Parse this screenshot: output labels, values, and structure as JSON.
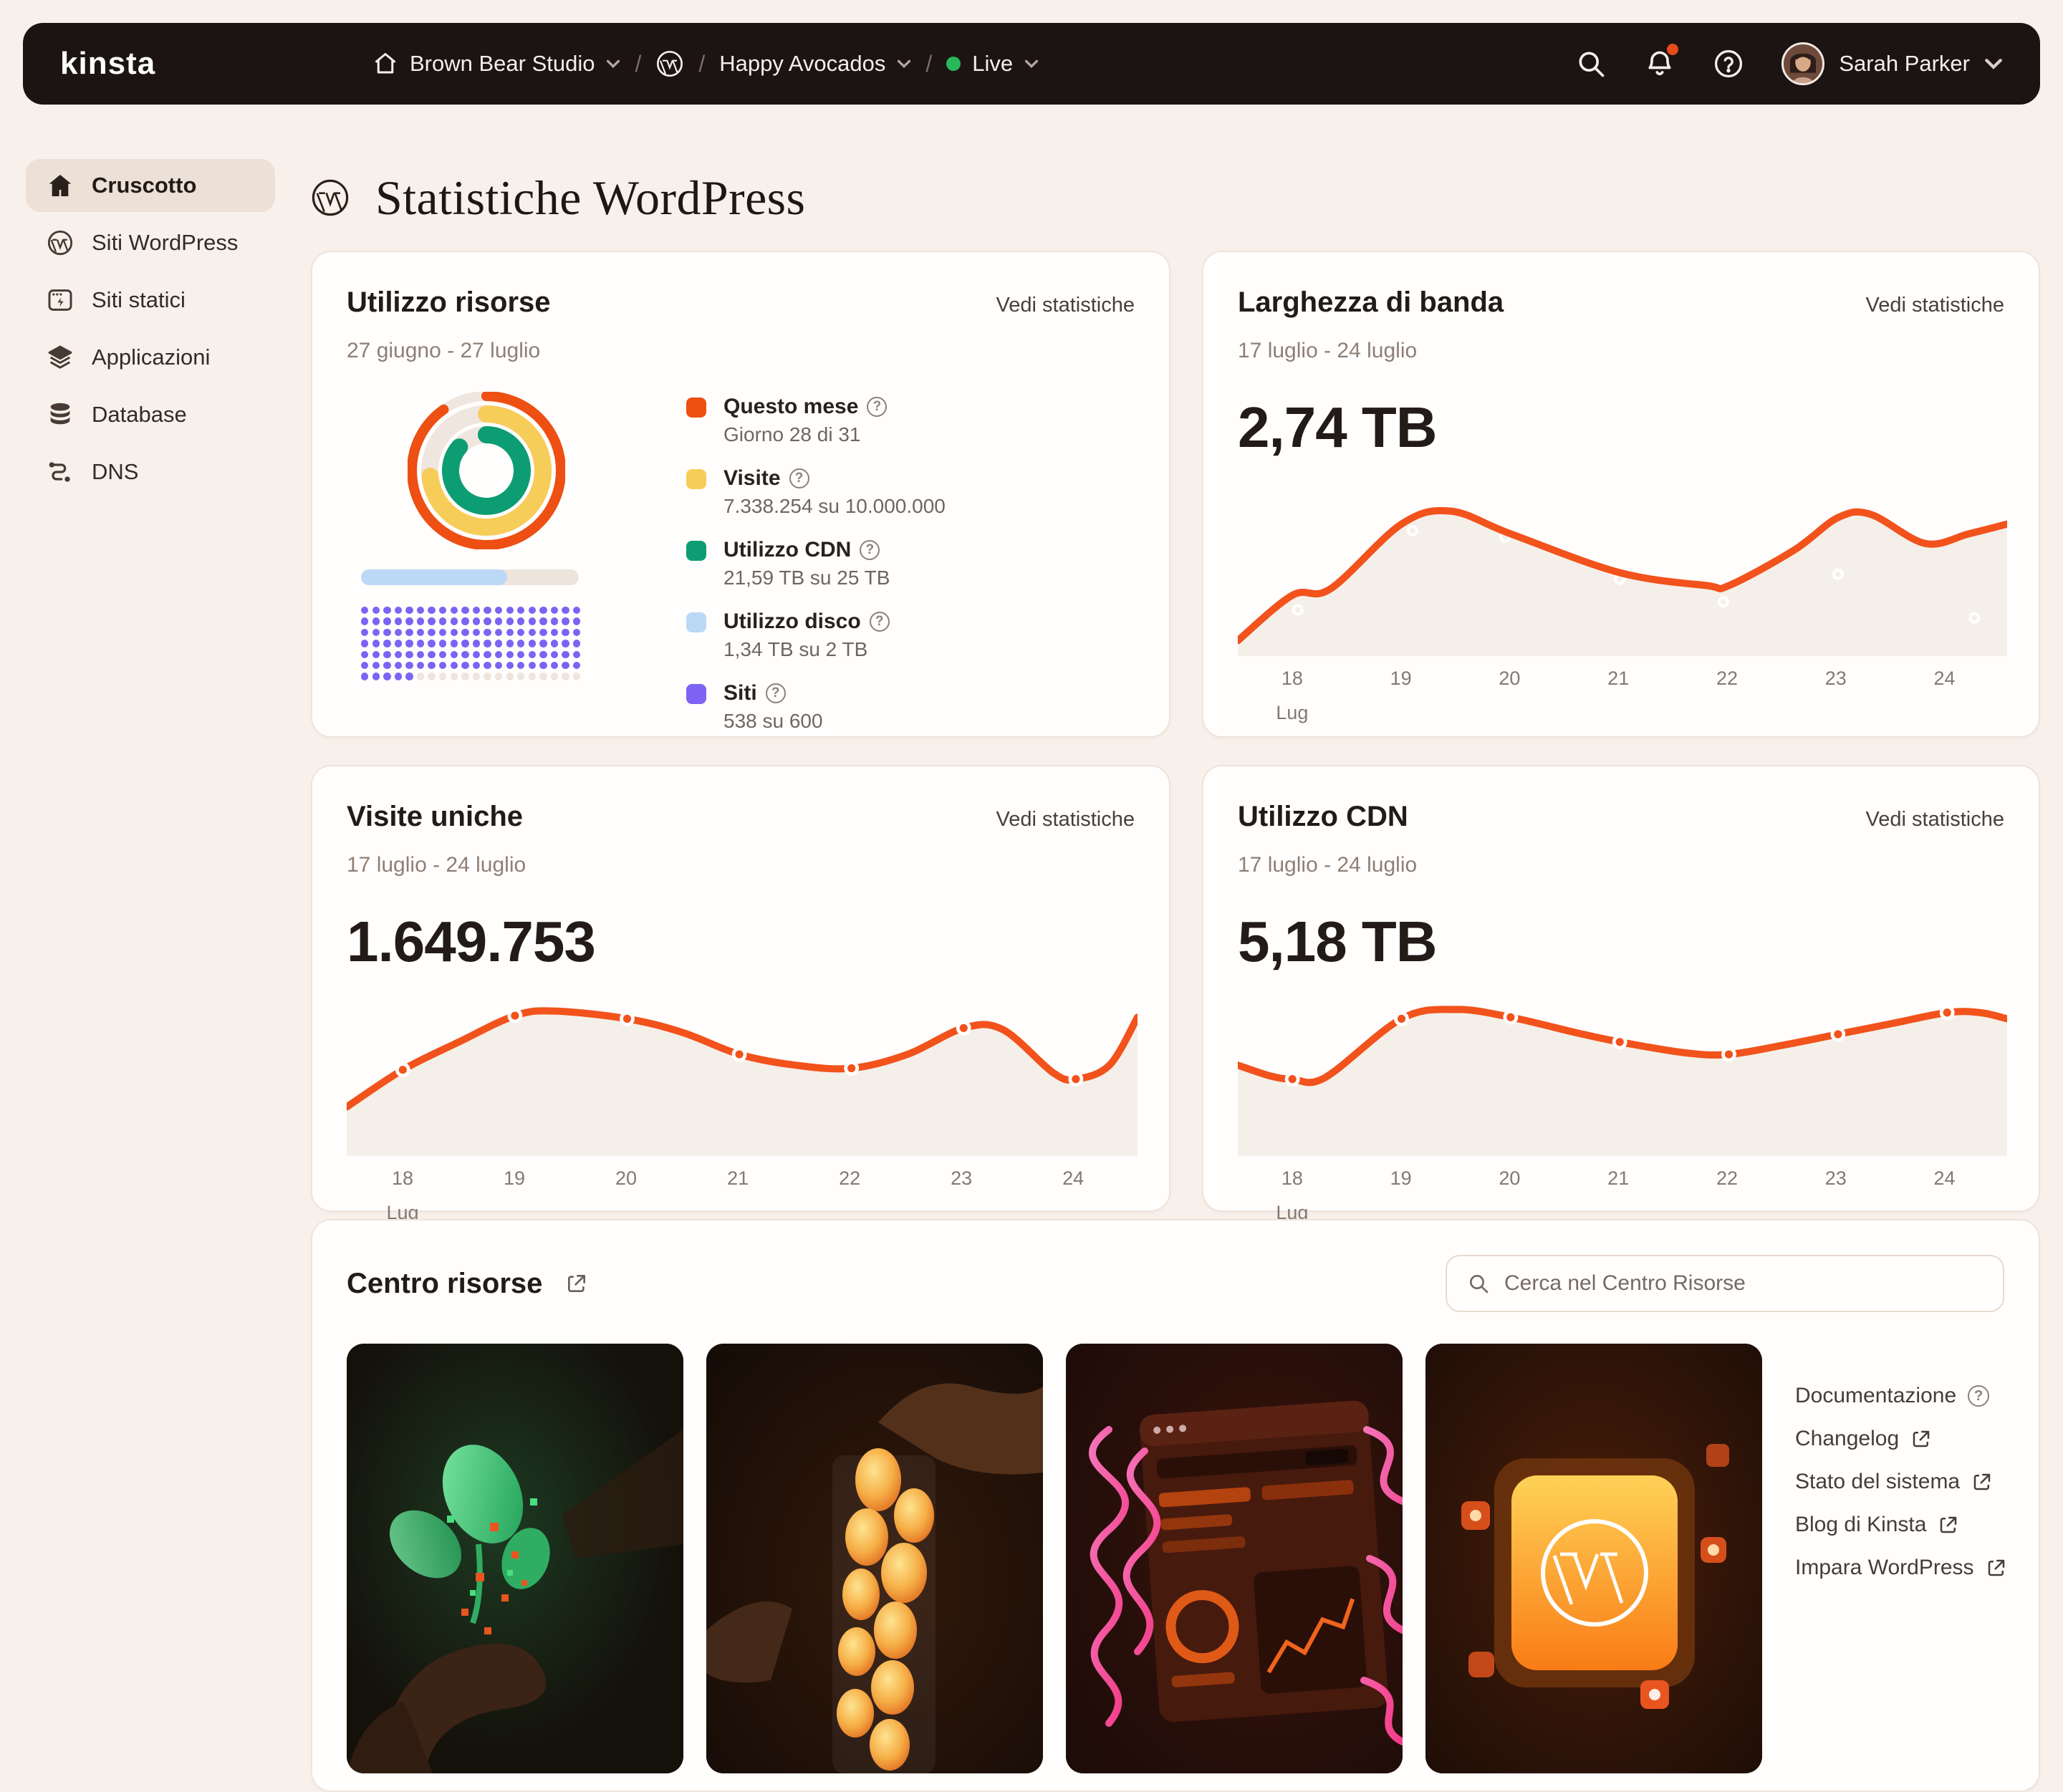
{
  "navbar": {
    "brand": "kinsta",
    "breadcrumb": {
      "company": "Brown Bear Studio",
      "site": "Happy Avocados",
      "environment": "Live"
    },
    "user_name": "Sarah Parker"
  },
  "sidebar": {
    "items": [
      {
        "label": "Cruscotto",
        "active": true
      },
      {
        "label": "Siti WordPress",
        "active": false
      },
      {
        "label": "Siti statici",
        "active": false
      },
      {
        "label": "Applicazioni",
        "active": false
      },
      {
        "label": "Database",
        "active": false
      },
      {
        "label": "DNS",
        "active": false
      }
    ]
  },
  "page": {
    "title": "Statistiche WordPress"
  },
  "cards": {
    "resource_usage": {
      "title": "Utilizzo risorse",
      "link_label": "Vedi statistiche",
      "date_range": "27 giugno - 27 luglio",
      "donut": {
        "track_color": "#efe6df",
        "rings": [
          {
            "name": "questo-mese",
            "pct": 90.3,
            "color": "#ee4f12",
            "radius": 52,
            "width": 7
          },
          {
            "name": "visite",
            "pct": 73.4,
            "color": "#f7cd5a",
            "radius": 39.5,
            "width": 12
          },
          {
            "name": "utilizzo-cdn",
            "pct": 86.4,
            "color": "#0d9d72",
            "radius": 25,
            "width": 12
          }
        ]
      },
      "disk_bar": {
        "pct": 67,
        "color": "#bcd8f7"
      },
      "sites_dots": {
        "filled": 125,
        "total": 140,
        "color": "#7c63f4"
      },
      "legend": [
        {
          "label": "Questo mese",
          "detail": "Giorno 28 di 31",
          "color": "#ee4f12"
        },
        {
          "label": "Visite",
          "detail": "7.338.254 su 10.000.000",
          "color": "#f7cd5a"
        },
        {
          "label": "Utilizzo CDN",
          "detail": "21,59 TB su 25 TB",
          "color": "#0d9d72"
        },
        {
          "label": "Utilizzo disco",
          "detail": "1,34 TB su 2 TB",
          "color": "#bcd8f7"
        },
        {
          "label": "Siti",
          "detail": "538 su 600",
          "color": "#7c63f4"
        }
      ]
    },
    "bandwidth": {
      "title": "Larghezza di banda",
      "link_label": "Vedi statistiche",
      "date_range": "17 luglio - 24 luglio",
      "value": "2,74 TB",
      "chart": {
        "type": "area-line",
        "line_color": "#f2521b",
        "fill_color": "#f5efe9",
        "x_domain": [
          17.5,
          24.55
        ],
        "x_ticks": [
          18,
          19,
          20,
          21,
          22,
          23,
          24
        ],
        "month_label": "Lug",
        "points": [
          [
            17.5,
            0.06
          ],
          [
            18,
            0.34
          ],
          [
            18.35,
            0.38
          ],
          [
            19,
            0.78
          ],
          [
            19.45,
            0.86
          ],
          [
            20,
            0.72
          ],
          [
            21,
            0.48
          ],
          [
            21.8,
            0.4
          ],
          [
            22,
            0.4
          ],
          [
            22.6,
            0.62
          ],
          [
            23,
            0.82
          ],
          [
            23.3,
            0.84
          ],
          [
            23.8,
            0.66
          ],
          [
            24.2,
            0.72
          ],
          [
            24.55,
            0.78
          ]
        ],
        "markers": [],
        "float_dots": [
          [
            18.05,
            0.25
          ],
          [
            19.1,
            0.74
          ],
          [
            19.95,
            0.7
          ],
          [
            21.0,
            0.44
          ],
          [
            21.95,
            0.3
          ],
          [
            23.0,
            0.47
          ],
          [
            24.25,
            0.2
          ]
        ]
      }
    },
    "unique_visits": {
      "title": "Visite uniche",
      "link_label": "Vedi statistiche",
      "date_range": "17 luglio - 24 luglio",
      "value": "1.649.753",
      "chart": {
        "type": "area-line",
        "line_color": "#f2521b",
        "fill_color": "#f5efe9",
        "x_domain": [
          17.5,
          24.55
        ],
        "x_ticks": [
          18,
          19,
          20,
          21,
          22,
          23,
          24
        ],
        "month_label": "Lug",
        "points": [
          [
            17.5,
            0.28
          ],
          [
            18,
            0.52
          ],
          [
            18.5,
            0.7
          ],
          [
            19,
            0.87
          ],
          [
            19.35,
            0.9
          ],
          [
            20,
            0.85
          ],
          [
            20.5,
            0.76
          ],
          [
            21,
            0.62
          ],
          [
            21.5,
            0.55
          ],
          [
            22,
            0.53
          ],
          [
            22.5,
            0.62
          ],
          [
            23,
            0.79
          ],
          [
            23.35,
            0.78
          ],
          [
            23.8,
            0.5
          ],
          [
            24,
            0.46
          ],
          [
            24.3,
            0.55
          ],
          [
            24.55,
            0.86
          ]
        ],
        "markers": [
          [
            18,
            0.52
          ],
          [
            19,
            0.87
          ],
          [
            20,
            0.85
          ],
          [
            21,
            0.62
          ],
          [
            22,
            0.53
          ],
          [
            23,
            0.79
          ],
          [
            24,
            0.46
          ]
        ],
        "float_dots": []
      }
    },
    "cdn_usage": {
      "title": "Utilizzo CDN",
      "link_label": "Vedi statistiche",
      "date_range": "17 luglio - 24 luglio",
      "value": "5,18 TB",
      "chart": {
        "type": "area-line",
        "line_color": "#f2521b",
        "fill_color": "#f5efe9",
        "x_domain": [
          17.5,
          24.55
        ],
        "x_ticks": [
          18,
          19,
          20,
          21,
          22,
          23,
          24
        ],
        "month_label": "Lug",
        "points": [
          [
            17.5,
            0.55
          ],
          [
            17.8,
            0.48
          ],
          [
            18,
            0.46
          ],
          [
            18.3,
            0.47
          ],
          [
            19,
            0.85
          ],
          [
            19.5,
            0.91
          ],
          [
            20,
            0.86
          ],
          [
            20.6,
            0.76
          ],
          [
            21,
            0.7
          ],
          [
            21.6,
            0.63
          ],
          [
            22,
            0.62
          ],
          [
            22.5,
            0.68
          ],
          [
            23,
            0.75
          ],
          [
            23.5,
            0.82
          ],
          [
            24,
            0.89
          ],
          [
            24.3,
            0.89
          ],
          [
            24.55,
            0.85
          ]
        ],
        "markers": [
          [
            18,
            0.46
          ],
          [
            19,
            0.85
          ],
          [
            20,
            0.86
          ],
          [
            21,
            0.7
          ],
          [
            22,
            0.62
          ],
          [
            23,
            0.75
          ],
          [
            24,
            0.89
          ]
        ],
        "float_dots": []
      }
    },
    "resource_center": {
      "title": "Centro risorse",
      "search_placeholder": "Cerca nel Centro Risorse",
      "links": [
        {
          "label": "Documentazione",
          "icon": "question-circle"
        },
        {
          "label": "Changelog",
          "icon": "external-link"
        },
        {
          "label": "Stato del sistema",
          "icon": "external-link"
        },
        {
          "label": "Blog di Kinsta",
          "icon": "external-link"
        },
        {
          "label": "Impara WordPress",
          "icon": "external-link"
        }
      ],
      "thumbnails": [
        "growing-plant-hand",
        "glowing-blobs-hands",
        "neon-cables-dashboard",
        "wordpress-glow-cube"
      ]
    }
  }
}
